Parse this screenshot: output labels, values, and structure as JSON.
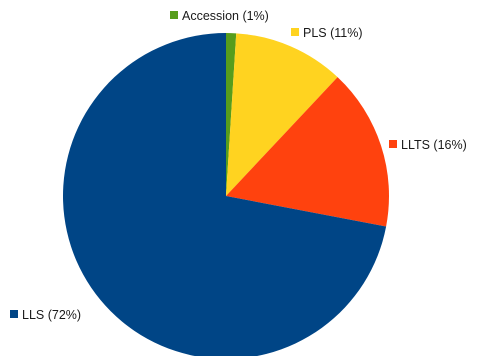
{
  "chart_data": {
    "type": "pie",
    "title": "",
    "start_angle_deg": 0,
    "direction": "clockwise",
    "slices": [
      {
        "label": "Accession (1%)",
        "name": "Accession",
        "value": 1,
        "color": "#579d1c"
      },
      {
        "label": "PLS (11%)",
        "name": "PLS",
        "value": 11,
        "color": "#ffd320"
      },
      {
        "label": "LLTS (16%)",
        "name": "LLTS",
        "value": 16,
        "color": "#ff420e"
      },
      {
        "label": "LLS (72%)",
        "name": "LLS",
        "value": 72,
        "color": "#004586"
      }
    ]
  }
}
